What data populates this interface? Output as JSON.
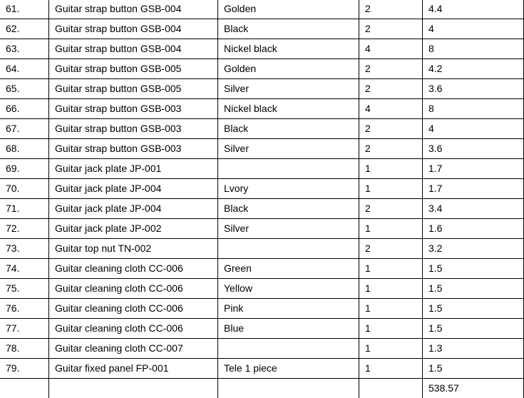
{
  "table": {
    "rows": [
      {
        "no": "61.",
        "item": "Guitar strap button GSB-004",
        "color": "Golden",
        "qty": "2",
        "price": "4.4"
      },
      {
        "no": "62.",
        "item": "Guitar strap button GSB-004",
        "color": "Black",
        "qty": "2",
        "price": "4"
      },
      {
        "no": "63.",
        "item": "Guitar strap button GSB-004",
        "color": "Nickel black",
        "qty": "4",
        "price": "8"
      },
      {
        "no": "64.",
        "item": "Guitar strap button GSB-005",
        "color": "Golden",
        "qty": "2",
        "price": "4.2"
      },
      {
        "no": "65.",
        "item": "Guitar strap button GSB-005",
        "color": "Silver",
        "qty": "2",
        "price": "3.6"
      },
      {
        "no": "66.",
        "item": "Guitar strap button GSB-003",
        "color": "Nickel black",
        "qty": "4",
        "price": "8"
      },
      {
        "no": "67.",
        "item": "Guitar strap button GSB-003",
        "color": "Black",
        "qty": "2",
        "price": "4"
      },
      {
        "no": "68.",
        "item": "Guitar strap button GSB-003",
        "color": "Silver",
        "qty": "2",
        "price": "3.6"
      },
      {
        "no": "69.",
        "item": "Guitar jack plate JP-001",
        "qty": "1",
        "price": "1.7"
      },
      {
        "no": "70.",
        "item": "Guitar jack plate JP-004",
        "color": "Lvory",
        "qty": "1",
        "price": "1.7"
      },
      {
        "no": "71.",
        "item": "Guitar jack plate JP-004",
        "color": "Black",
        "qty": "2",
        "price": "3.4"
      },
      {
        "no": "72.",
        "item": "Guitar jack plate JP-002",
        "color": "Silver",
        "qty": "1",
        "price": "1.6"
      },
      {
        "no": "73.",
        "item": "Guitar top nut TN-002",
        "qty": "2",
        "price": "3.2"
      },
      {
        "no": "74.",
        "item": "Guitar cleaning cloth CC-006",
        "color": "Green",
        "qty": "1",
        "price": "1.5"
      },
      {
        "no": "75.",
        "item": "Guitar cleaning cloth CC-006",
        "color": "Yellow",
        "qty": "1",
        "price": "1.5"
      },
      {
        "no": "76.",
        "item": "Guitar cleaning cloth CC-006",
        "color": "Pink",
        "qty": "1",
        "price": "1.5"
      },
      {
        "no": "77.",
        "item": "Guitar cleaning cloth CC-006",
        "color": "Blue",
        "qty": "1",
        "price": "1.5"
      },
      {
        "no": "78.",
        "item": "Guitar cleaning cloth CC-007",
        "qty": "1",
        "price": "1.3"
      },
      {
        "no": "79.",
        "item": "Guitar fixed panel FP-001",
        "color": "Tele 1 piece",
        "qty": "1",
        "price": "1.5"
      },
      {
        "price": "538.57"
      }
    ]
  }
}
